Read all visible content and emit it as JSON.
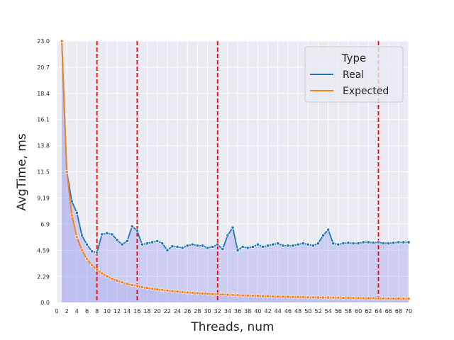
{
  "chart_data": {
    "type": "line",
    "xlabel": "Threads, num",
    "ylabel": "AvgTime, ms",
    "xlim": [
      0,
      70
    ],
    "ylim": [
      0,
      23.0
    ],
    "x_ticks": [
      0,
      2,
      4,
      6,
      8,
      10,
      12,
      14,
      16,
      18,
      20,
      22,
      24,
      26,
      28,
      30,
      32,
      34,
      36,
      38,
      40,
      42,
      44,
      46,
      48,
      50,
      52,
      54,
      56,
      58,
      60,
      62,
      64,
      66,
      68,
      70
    ],
    "y_ticks": [
      0.0,
      2.29,
      4.59,
      6.9,
      9.19,
      11.5,
      13.8,
      16.1,
      18.4,
      20.7,
      23.0
    ],
    "y_tick_labels": [
      "0.0",
      "2.29",
      "4.59",
      "6.9",
      "9.19",
      "11.5",
      "13.8",
      "16.1",
      "18.4",
      "20.7",
      "23.0"
    ],
    "grid": true,
    "legend": {
      "title": "Type",
      "position": "top-right"
    },
    "vlines": {
      "x": [
        8,
        16,
        32,
        64
      ],
      "color": "#ff0000",
      "style": "dashed"
    },
    "fill_color": "#8080f0",
    "series": [
      {
        "name": "Real",
        "color": "#1f77b4",
        "x": [
          1,
          2,
          3,
          4,
          5,
          6,
          7,
          8,
          9,
          10,
          11,
          12,
          13,
          14,
          15,
          16,
          17,
          18,
          19,
          20,
          21,
          22,
          23,
          24,
          25,
          26,
          27,
          28,
          29,
          30,
          31,
          32,
          33,
          34,
          35,
          36,
          37,
          38,
          39,
          40,
          41,
          42,
          43,
          44,
          45,
          46,
          47,
          48,
          49,
          50,
          51,
          52,
          53,
          54,
          55,
          56,
          57,
          58,
          59,
          60,
          61,
          62,
          63,
          64,
          65,
          66,
          67,
          68,
          69,
          70
        ],
        "values": [
          23.0,
          11.5,
          8.9,
          7.9,
          5.9,
          5.1,
          4.5,
          4.4,
          6.0,
          6.1,
          6.0,
          5.5,
          5.1,
          5.4,
          6.7,
          6.3,
          5.1,
          5.2,
          5.3,
          5.4,
          5.2,
          4.6,
          4.95,
          4.9,
          4.8,
          5.0,
          5.1,
          5.0,
          5.0,
          4.8,
          4.9,
          5.1,
          4.7,
          5.9,
          6.6,
          4.6,
          4.9,
          4.8,
          4.9,
          5.1,
          4.9,
          5.0,
          5.1,
          5.2,
          5.0,
          5.0,
          5.0,
          5.1,
          5.2,
          5.1,
          5.0,
          5.2,
          5.9,
          6.4,
          5.2,
          5.1,
          5.2,
          5.25,
          5.2,
          5.2,
          5.3,
          5.3,
          5.25,
          5.3,
          5.2,
          5.2,
          5.25,
          5.3,
          5.3,
          5.3
        ]
      },
      {
        "name": "Expected",
        "color": "#ff7f0e",
        "x": [
          1,
          2,
          3,
          4,
          5,
          6,
          7,
          8,
          9,
          10,
          11,
          12,
          13,
          14,
          15,
          16,
          17,
          18,
          19,
          20,
          21,
          22,
          23,
          24,
          25,
          26,
          27,
          28,
          29,
          30,
          31,
          32,
          33,
          34,
          35,
          36,
          37,
          38,
          39,
          40,
          41,
          42,
          43,
          44,
          45,
          46,
          47,
          48,
          49,
          50,
          51,
          52,
          53,
          54,
          55,
          56,
          57,
          58,
          59,
          60,
          61,
          62,
          63,
          64,
          65,
          66,
          67,
          68,
          69,
          70
        ],
        "values": [
          23.0,
          11.5,
          7.67,
          5.75,
          4.6,
          3.83,
          3.29,
          2.88,
          2.56,
          2.3,
          2.09,
          1.92,
          1.77,
          1.64,
          1.53,
          1.44,
          1.35,
          1.28,
          1.21,
          1.15,
          1.1,
          1.05,
          1.0,
          0.96,
          0.92,
          0.88,
          0.85,
          0.82,
          0.79,
          0.77,
          0.74,
          0.72,
          0.7,
          0.68,
          0.66,
          0.64,
          0.62,
          0.61,
          0.59,
          0.58,
          0.56,
          0.55,
          0.53,
          0.52,
          0.51,
          0.5,
          0.49,
          0.48,
          0.47,
          0.46,
          0.45,
          0.44,
          0.43,
          0.43,
          0.42,
          0.41,
          0.4,
          0.4,
          0.39,
          0.38,
          0.38,
          0.37,
          0.37,
          0.36,
          0.35,
          0.35,
          0.34,
          0.34,
          0.33,
          0.33
        ]
      }
    ]
  }
}
